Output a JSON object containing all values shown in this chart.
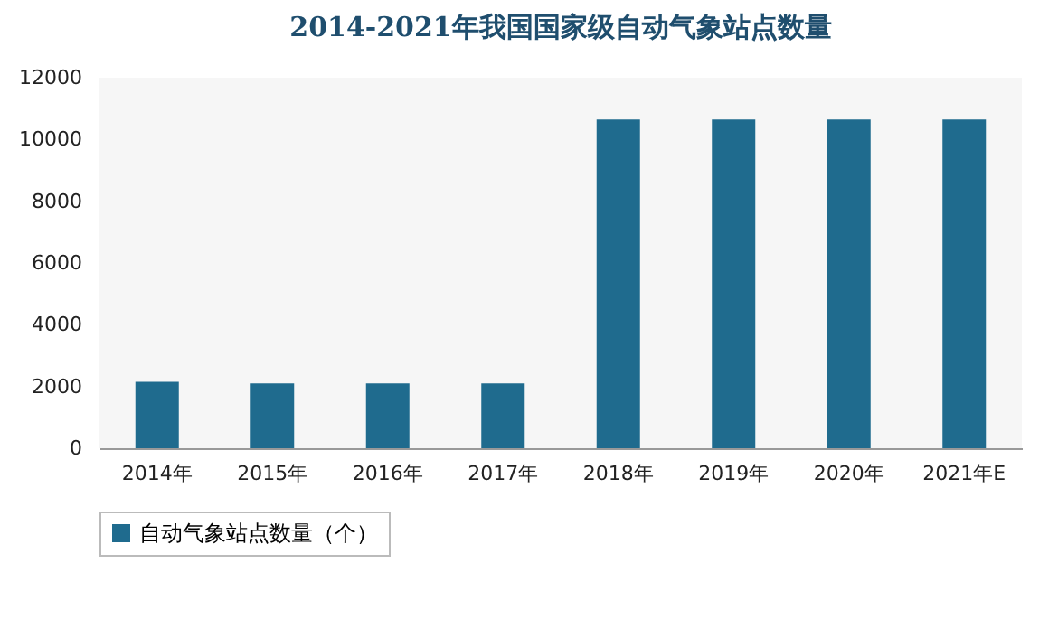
{
  "chart_data": {
    "type": "bar",
    "title": "2014-2021年我国国家级自动气象站点数量",
    "categories": [
      "2014年",
      "2015年",
      "2016年",
      "2017年",
      "2018年",
      "2019年",
      "2020年",
      "2021年E"
    ],
    "series": [
      {
        "name": "自动气象站点数量（个）",
        "color": "#1f6b8e",
        "values": [
          2150,
          2100,
          2100,
          2100,
          10650,
          10650,
          10650,
          10650
        ]
      }
    ],
    "ylim": [
      0,
      12000
    ],
    "yticks": [
      0,
      2000,
      4000,
      6000,
      8000,
      10000,
      12000
    ],
    "grid": false,
    "legend": "bottom"
  }
}
